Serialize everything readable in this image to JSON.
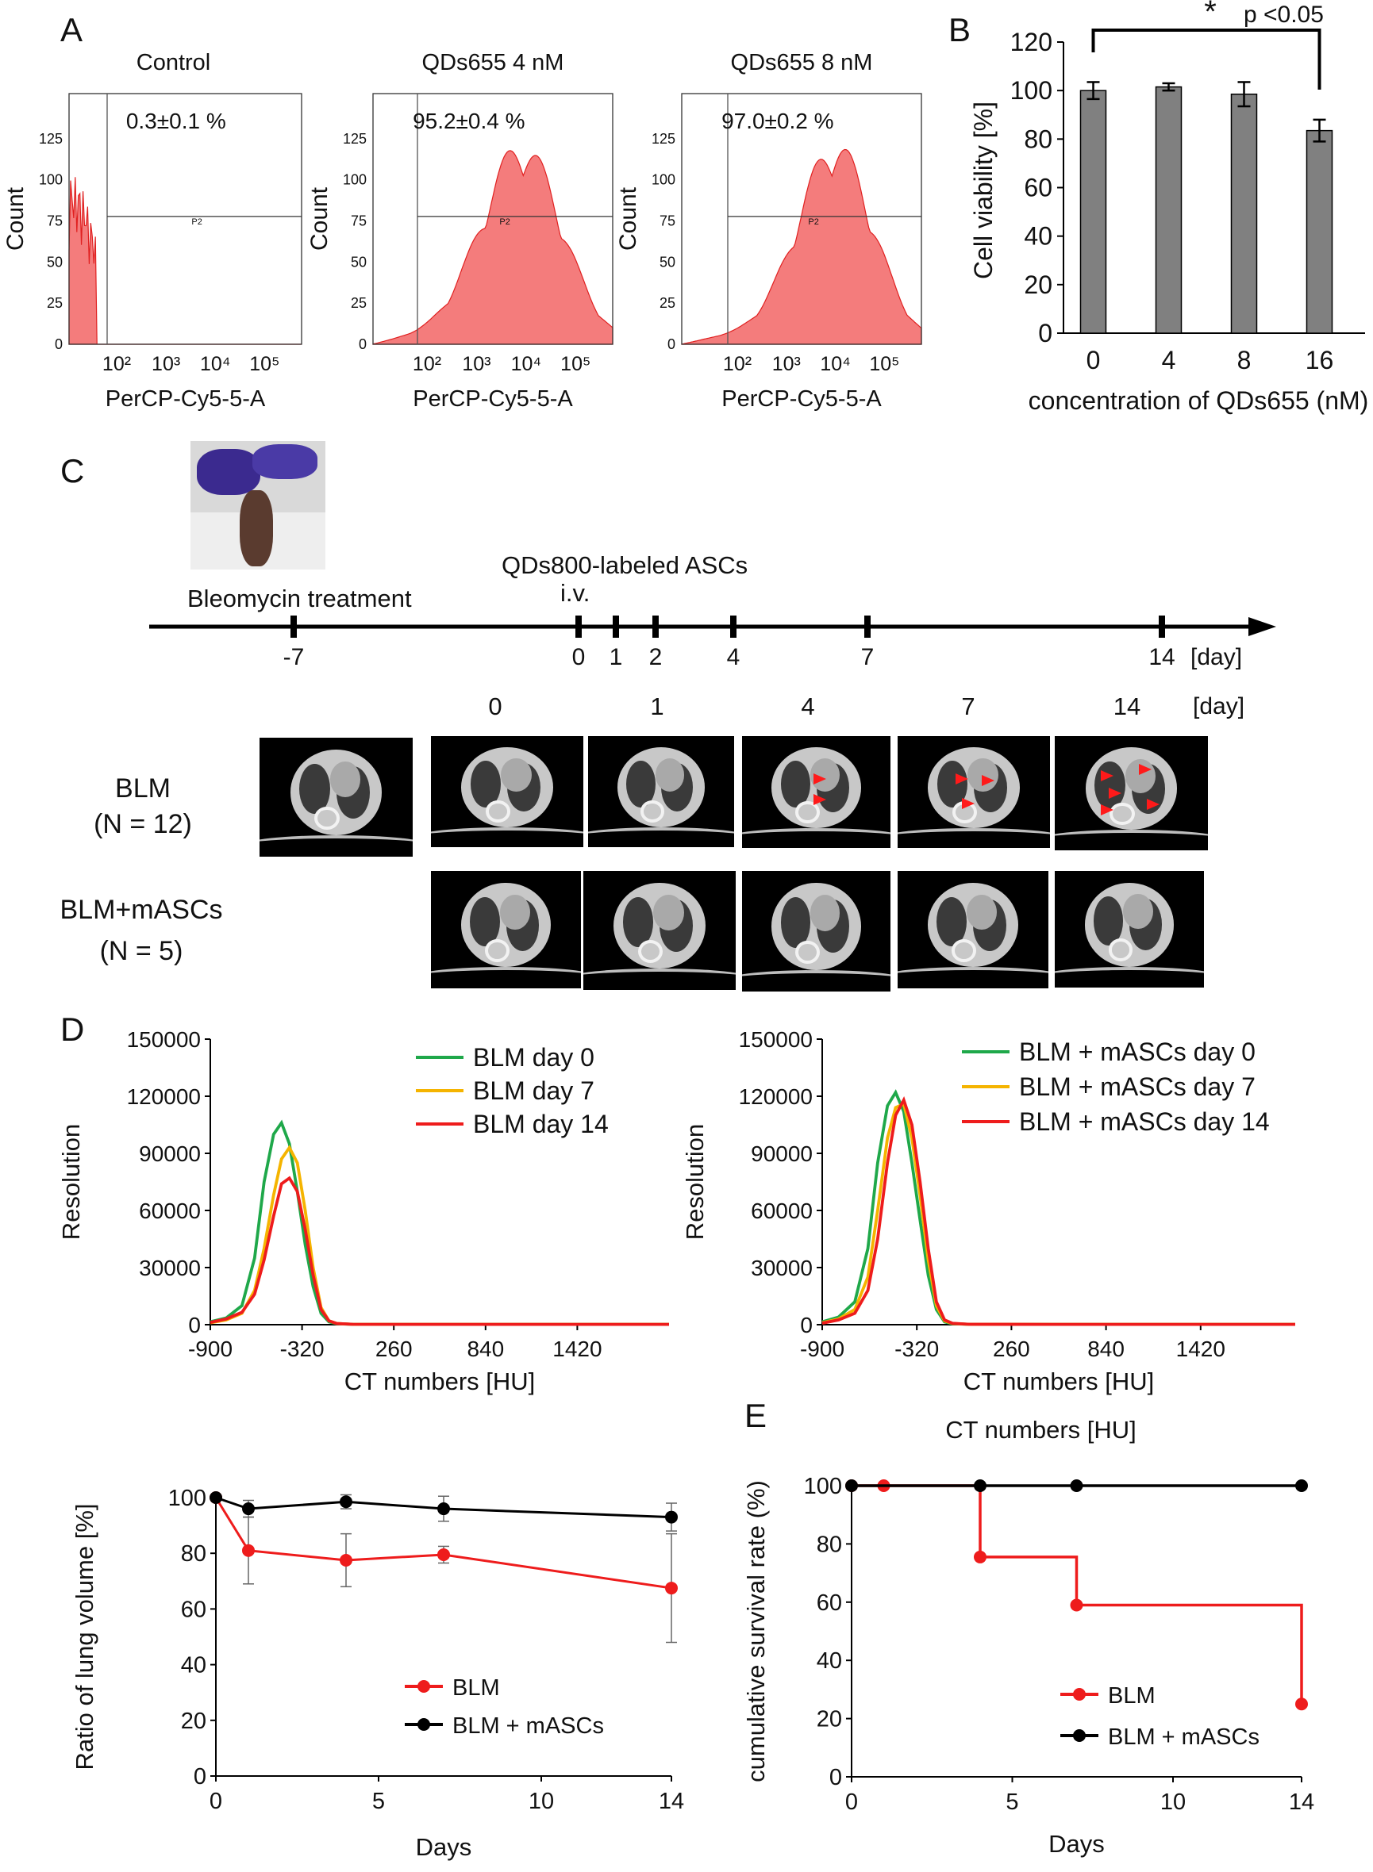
{
  "panel_labels": {
    "a": "A",
    "b": "B",
    "c": "C",
    "d": "D",
    "e": "E"
  },
  "colors": {
    "flow_fill": "#f47c7c",
    "flow_line": "#e02020",
    "bar_fill": "#808080",
    "green": "#1fa84a",
    "yellow": "#f5b400",
    "red": "#ee1c1c",
    "black": "#000000"
  },
  "flow": {
    "plots": [
      {
        "title": "Control",
        "percent": "0.3±0.1 %",
        "ylabel": "Count",
        "xlabel": "PerCP-Cy5-5-A",
        "gate": "P2",
        "yticks": [
          "0",
          "25",
          "50",
          "75",
          "100",
          "125"
        ],
        "xticks": [
          "10²",
          "10³",
          "10⁴",
          "10⁵"
        ]
      },
      {
        "title": "QDs655 4 nM",
        "percent": "95.2±0.4 %",
        "ylabel": "Count",
        "xlabel": "PerCP-Cy5-5-A",
        "gate": "P2",
        "yticks": [
          "0",
          "25",
          "50",
          "75",
          "100",
          "125"
        ],
        "xticks": [
          "10²",
          "10³",
          "10⁴",
          "10⁵"
        ]
      },
      {
        "title": "QDs655 8 nM",
        "percent": "97.0±0.2 %",
        "ylabel": "Count",
        "xlabel": "PerCP-Cy5-5-A",
        "gate": "P2",
        "yticks": [
          "0",
          "25",
          "50",
          "75",
          "100",
          "125"
        ],
        "xticks": [
          "10²",
          "10³",
          "10⁴",
          "10⁵"
        ]
      }
    ]
  },
  "timeline": {
    "event_left": "Bleomycin treatment",
    "event_right_line1": "QDs800-labeled ASCs",
    "event_right_line2": "i.v.",
    "ticks": [
      "-7",
      "0",
      "1",
      "2",
      "4",
      "7",
      "14"
    ],
    "unit": "[day]"
  },
  "ct_grid": {
    "day_headers": [
      "0",
      "1",
      "4",
      "7",
      "14"
    ],
    "unit": "[day]",
    "row1_line1": "BLM",
    "row1_line2": "(N = 12)",
    "row2_line1": "BLM+mASCs",
    "row2_line2": "(N = 5)"
  },
  "chart_data": [
    {
      "id": "B",
      "type": "bar",
      "categories": [
        "0",
        "4",
        "8",
        "16"
      ],
      "values": [
        100,
        101.5,
        98.5,
        83.5
      ],
      "errors": [
        3.5,
        1.5,
        5,
        4.5
      ],
      "ylabel": "Cell viability [%]",
      "xlabel": "concentration of QDs655 (nM)",
      "ylim": [
        0,
        120
      ],
      "yticks": [
        0,
        20,
        40,
        60,
        80,
        100,
        120
      ],
      "significance": {
        "from": "0",
        "to": "16",
        "star": "*",
        "label": "p <0.05"
      }
    },
    {
      "id": "D-left",
      "type": "line",
      "xlabel": "CT numbers [HU]",
      "ylabel": "Resolution",
      "xlim": [
        -900,
        2000
      ],
      "ylim": [
        0,
        150000
      ],
      "xticks": [
        -900,
        -320,
        260,
        840,
        1420
      ],
      "yticks": [
        0,
        30000,
        60000,
        90000,
        120000,
        150000
      ],
      "legend_position": "top-right",
      "series": [
        {
          "name": "BLM day  0",
          "color": "#1fa84a",
          "x": [
            -900,
            -800,
            -700,
            -620,
            -560,
            -500,
            -450,
            -400,
            -350,
            -300,
            -250,
            -200,
            -150,
            -100,
            0,
            500,
            1000,
            2000
          ],
          "y": [
            1500,
            3500,
            10000,
            35000,
            75000,
            100000,
            106000,
            95000,
            70000,
            42000,
            20000,
            6000,
            1500,
            500,
            200,
            150,
            150,
            150
          ]
        },
        {
          "name": "BLM day  7",
          "color": "#f5b400",
          "x": [
            -900,
            -800,
            -700,
            -620,
            -560,
            -500,
            -450,
            -400,
            -350,
            -300,
            -250,
            -200,
            -150,
            -100,
            0,
            500,
            1000,
            2000
          ],
          "y": [
            1000,
            2500,
            6000,
            18000,
            40000,
            68000,
            87000,
            93000,
            85000,
            60000,
            30000,
            9000,
            2000,
            600,
            200,
            150,
            150,
            150
          ]
        },
        {
          "name": "BLM day 14",
          "color": "#ee1c1c",
          "x": [
            -900,
            -800,
            -700,
            -620,
            -560,
            -500,
            -450,
            -400,
            -350,
            -300,
            -250,
            -200,
            -150,
            -100,
            0,
            500,
            1000,
            2000
          ],
          "y": [
            1200,
            3000,
            6500,
            16000,
            34000,
            57000,
            74000,
            77000,
            70000,
            50000,
            26000,
            8000,
            2000,
            600,
            200,
            150,
            150,
            150
          ]
        }
      ]
    },
    {
      "id": "D-right",
      "type": "line",
      "xlabel": "CT numbers [HU]",
      "ylabel": "Resolution",
      "xlim": [
        -900,
        2000
      ],
      "ylim": [
        0,
        150000
      ],
      "xticks": [
        -900,
        -320,
        260,
        840,
        1420
      ],
      "yticks": [
        0,
        30000,
        60000,
        90000,
        120000,
        150000
      ],
      "legend_position": "top-right",
      "series": [
        {
          "name": "BLM + mASCs day  0",
          "color": "#1fa84a",
          "x": [
            -900,
            -800,
            -700,
            -620,
            -560,
            -500,
            -450,
            -400,
            -350,
            -300,
            -250,
            -200,
            -150,
            -100,
            0,
            500,
            1000,
            2000
          ],
          "y": [
            1500,
            4000,
            12000,
            40000,
            85000,
            115000,
            122000,
            112000,
            85000,
            55000,
            26000,
            8000,
            1500,
            500,
            200,
            150,
            150,
            150
          ]
        },
        {
          "name": "BLM + mASCs day  7",
          "color": "#f5b400",
          "x": [
            -900,
            -800,
            -700,
            -620,
            -560,
            -500,
            -450,
            -400,
            -350,
            -300,
            -250,
            -200,
            -150,
            -100,
            0,
            500,
            1000,
            2000
          ],
          "y": [
            1000,
            3000,
            8000,
            25000,
            60000,
            98000,
            114000,
            116000,
            98000,
            68000,
            34000,
            10000,
            2000,
            600,
            200,
            150,
            150,
            150
          ]
        },
        {
          "name": "BLM + mASCs day 14",
          "color": "#ee1c1c",
          "x": [
            -900,
            -800,
            -700,
            -620,
            -560,
            -500,
            -450,
            -400,
            -350,
            -300,
            -250,
            -200,
            -150,
            -100,
            0,
            500,
            1000,
            2000
          ],
          "y": [
            800,
            2500,
            6000,
            18000,
            45000,
            85000,
            110000,
            118000,
            105000,
            75000,
            40000,
            12000,
            2500,
            700,
            200,
            150,
            150,
            150
          ]
        }
      ]
    },
    {
      "id": "lung-volume",
      "type": "line",
      "xlabel": "Days",
      "ylabel": "Ratio of lung volume [%]",
      "xlim": [
        0,
        14
      ],
      "ylim": [
        0,
        100
      ],
      "xticks": [
        0,
        5,
        10,
        14
      ],
      "yticks": [
        0,
        20,
        40,
        60,
        80,
        100
      ],
      "legend_position": "bottom-center",
      "series": [
        {
          "name": "BLM",
          "color": "#ee1c1c",
          "x": [
            0,
            1,
            4,
            7,
            14
          ],
          "y": [
            100,
            81,
            77.5,
            79.5,
            67.5
          ],
          "err": [
            0,
            12,
            9.5,
            3,
            19.5
          ]
        },
        {
          "name": "BLM + mASCs",
          "color": "#000000",
          "x": [
            0,
            1,
            4,
            7,
            14
          ],
          "y": [
            100,
            96,
            98.5,
            96,
            93
          ],
          "err": [
            0,
            3,
            2.5,
            4.5,
            5
          ]
        }
      ]
    },
    {
      "id": "E",
      "type": "line",
      "title": "CT numbers [HU]",
      "xlabel": "Days",
      "ylabel": "cumulative survival rate (%)",
      "xlim": [
        0,
        14
      ],
      "ylim": [
        0,
        100
      ],
      "xticks": [
        0,
        5,
        10,
        14
      ],
      "yticks": [
        0,
        20,
        40,
        60,
        80,
        100
      ],
      "legend_position": "bottom-right",
      "step": true,
      "series": [
        {
          "name": "BLM",
          "color": "#ee1c1c",
          "x": [
            0,
            1,
            4,
            7,
            14
          ],
          "y": [
            100,
            100,
            75.5,
            59,
            25
          ]
        },
        {
          "name": "BLM + mASCs",
          "color": "#000000",
          "x": [
            0,
            4,
            7,
            14
          ],
          "y": [
            100,
            100,
            100,
            100
          ]
        }
      ]
    }
  ]
}
